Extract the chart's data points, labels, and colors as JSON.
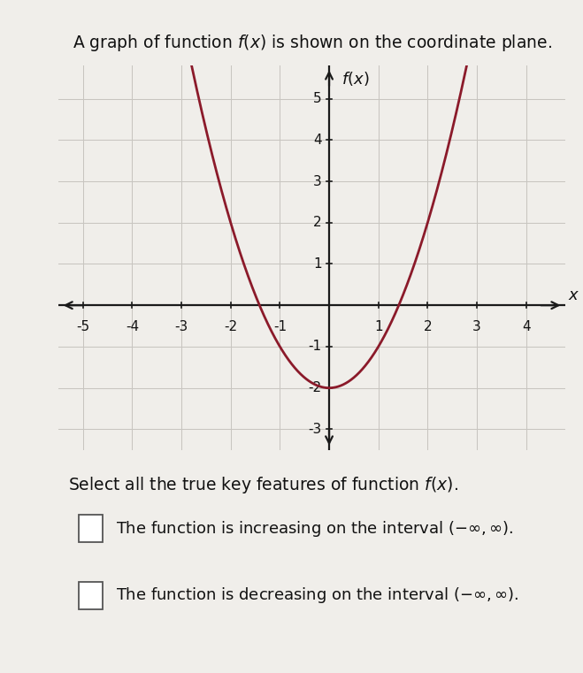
{
  "title_text": "A graph of function $f(x)$ is shown on the coordinate plane.",
  "ylabel": "$f(x)$",
  "xlabel": "$x$",
  "xlim": [
    -5.5,
    4.8
  ],
  "ylim": [
    -3.5,
    5.8
  ],
  "xticks": [
    -5,
    -4,
    -3,
    -2,
    -1,
    1,
    2,
    3,
    4
  ],
  "yticks": [
    -3,
    -2,
    -1,
    1,
    2,
    3,
    4,
    5
  ],
  "curve_color": "#8B1A2A",
  "curve_linewidth": 2.0,
  "background_color": "#f0eeea",
  "grid_color": "#c8c5c0",
  "axis_color": "#1a1a1a",
  "select_text": "Select all the true key features of function $f(x)$.",
  "option1": "The function is increasing on the interval $(-\\infty, \\infty)$.",
  "option2": "The function is decreasing on the interval $(-\\infty, \\infty)$.",
  "text_fontsize": 13.5,
  "option_fontsize": 13.0,
  "tick_fontsize": 11
}
